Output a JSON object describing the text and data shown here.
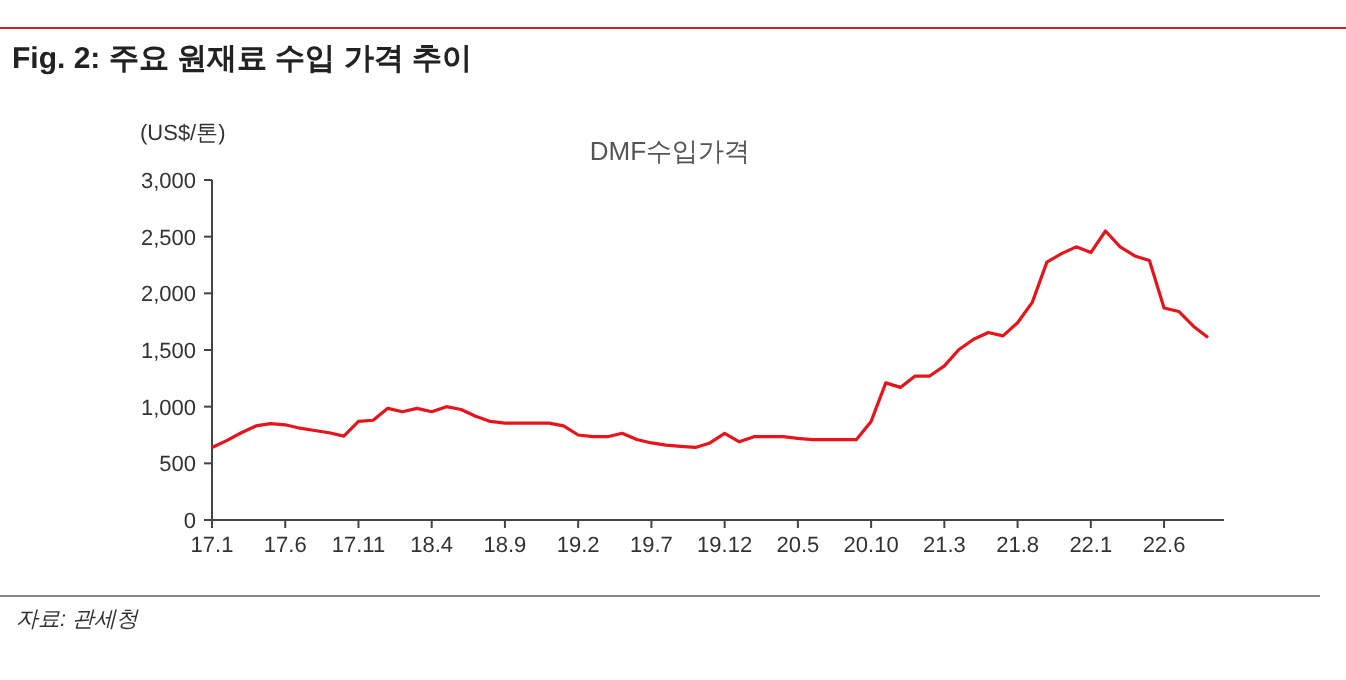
{
  "chart_data": {
    "type": "line",
    "title": "Fig. 2: 주요 원재료 수입 가격 추이",
    "subtitle": "DMF수입가격",
    "ylabel": "(US$/톤)",
    "annotations": [
      "자료: 관세청"
    ],
    "categories": [
      "17.1",
      null,
      null,
      null,
      null,
      "17.6",
      null,
      null,
      null,
      null,
      "17.11",
      null,
      null,
      null,
      null,
      "18.4",
      null,
      null,
      null,
      null,
      "18.9",
      null,
      null,
      null,
      null,
      "19.2",
      null,
      null,
      null,
      null,
      "19.7",
      null,
      null,
      null,
      null,
      "19.12",
      null,
      null,
      null,
      null,
      "20.5",
      null,
      null,
      null,
      null,
      "20.10",
      null,
      null,
      null,
      null,
      "21.3",
      null,
      null,
      null,
      null,
      "21.8",
      null,
      null,
      null,
      null,
      "22.1",
      null,
      null,
      null,
      null,
      "22.6",
      null,
      null,
      null
    ],
    "series": [
      {
        "color": "#e8141c",
        "values": [
          640,
          700,
          770,
          830,
          850,
          840,
          810,
          790,
          770,
          740,
          870,
          880,
          985,
          955,
          985,
          955,
          1000,
          975,
          915,
          870,
          855,
          855,
          855,
          855,
          830,
          750,
          735,
          735,
          765,
          710,
          680,
          660,
          650,
          640,
          680,
          765,
          690,
          735,
          735,
          735,
          720,
          710,
          710,
          710,
          710,
          870,
          1210,
          1170,
          1270,
          1270,
          1360,
          1505,
          1595,
          1655,
          1625,
          1740,
          1920,
          2275,
          2350,
          2410,
          2360,
          2550,
          2410,
          2330,
          2290,
          1870,
          1840,
          1710,
          1610
        ]
      }
    ],
    "ylim": [
      0,
      3000
    ],
    "yticks": [
      {
        "value": 0,
        "label": "0"
      },
      {
        "value": 500,
        "label": "500"
      },
      {
        "value": 1000,
        "label": "1,000"
      },
      {
        "value": 1500,
        "label": "1,500"
      },
      {
        "value": 2000,
        "label": "2,000"
      },
      {
        "value": 2500,
        "label": "2,500"
      },
      {
        "value": 3000,
        "label": "3,000"
      }
    ],
    "grid": false,
    "marker": "none",
    "line_style": "solid"
  }
}
